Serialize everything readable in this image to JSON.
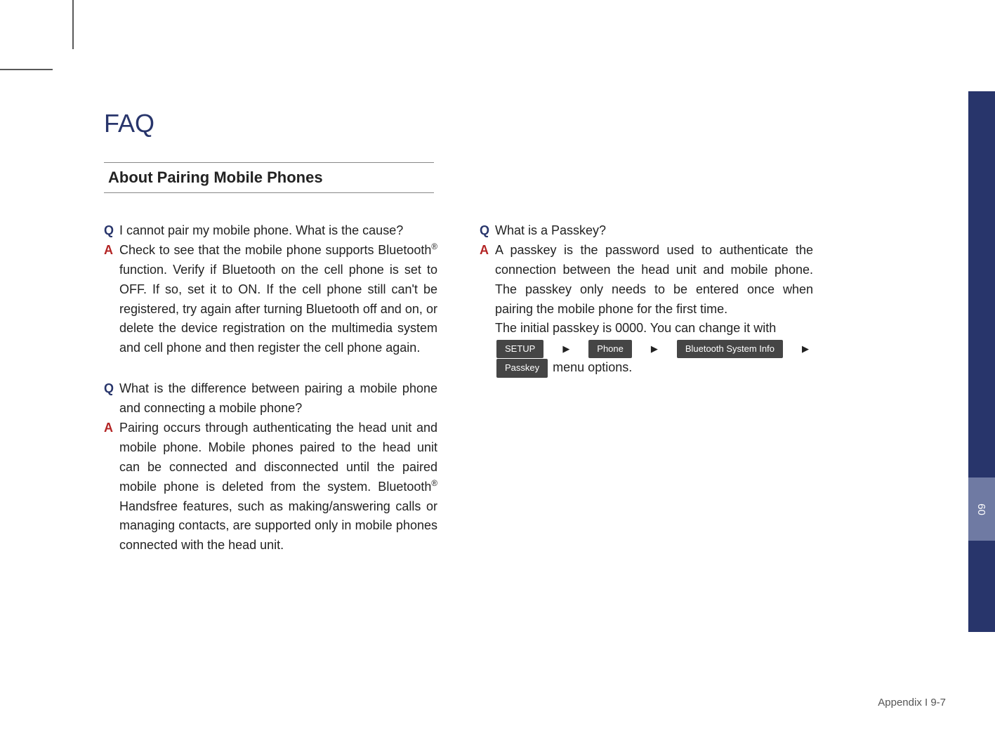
{
  "title": "FAQ",
  "section": "About Pairing Mobile Phones",
  "qa_left": [
    {
      "q": "I cannot pair my mobile phone. What is the cause?",
      "a": "Check to see that the mobile phone supports Bluetooth<sup>®</sup> function. Verify if Bluetooth on the cell phone is set to OFF. If so, set it to ON. If the cell phone still can't be registered, try again after turning Bluetooth off and on, or delete the device registration on the multimedia system and cell phone and then register the cell phone again."
    },
    {
      "q": "What is the difference between pairing a mobile phone and connecting a mobile phone?",
      "a": "Pairing occurs through authenticating the head unit and mobile phone. Mobile phones paired to the head unit can be connected and disconnected until the paired mobile phone is deleted from the system. Bluetooth<sup>®</sup> Handsfree features, such as making/answering calls or managing contacts, are supported only in mobile phones connected with the head unit."
    }
  ],
  "qa_right": {
    "q": "What is a Passkey?",
    "a_part1": "A passkey is the password used to authenticate the connection between the head unit and mobile phone. The passkey only needs to be entered once when pairing the mobile phone for the first time.",
    "a_part2": "The initial passkey is 0000. You can change it with",
    "chips": [
      "SETUP",
      "Phone",
      "Bluetooth System Info",
      "Passkey"
    ],
    "a_part3": " menu options."
  },
  "sidetab_label": "09",
  "footer": "Appendix I 9-7",
  "colors": {
    "title": "#28356b",
    "q_marker": "#28356b",
    "a_marker": "#b32424",
    "sidetab_bg": "#28356b",
    "sidetab_active_bg": "#6f7aa3",
    "chip_bg": "#454545",
    "chip_text": "#ffffff",
    "rule": "#888888",
    "body_text": "#222222"
  },
  "typography": {
    "title_fontsize": 36,
    "section_fontsize": 22,
    "body_fontsize": 18,
    "chip_fontsize": 13,
    "footer_fontsize": 15
  }
}
